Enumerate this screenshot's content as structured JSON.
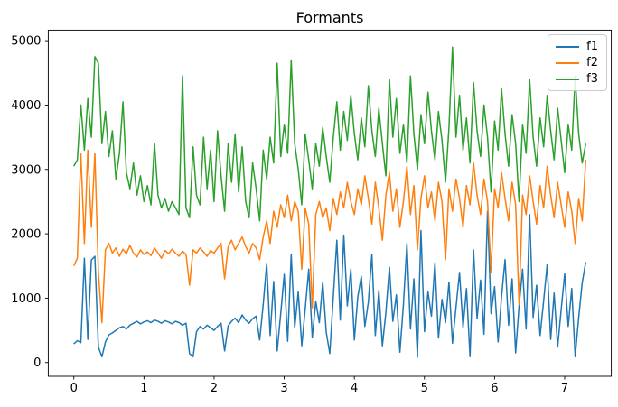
{
  "title": "Formants",
  "axes": {
    "xticks": [
      0,
      1,
      2,
      3,
      4,
      5,
      6,
      7
    ],
    "yticks": [
      0,
      1000,
      2000,
      3000,
      4000,
      5000
    ],
    "spine_color": "#000000",
    "tick_label_color": "#000000"
  },
  "legend": {
    "items": [
      {
        "label": "f1",
        "color": "#1f77b4"
      },
      {
        "label": "f2",
        "color": "#ff7f0e"
      },
      {
        "label": "f3",
        "color": "#2ca02c"
      }
    ]
  },
  "chart_data": {
    "type": "line",
    "title": "Formants",
    "xlabel": "",
    "ylabel": "",
    "grid": false,
    "legend_position": "upper right",
    "x_start": 0,
    "x_step": 0.05,
    "x_end": 7.3,
    "xlim": [
      -0.365,
      7.665
    ],
    "ylim": [
      -214,
      5164
    ],
    "xticks": [
      0,
      1,
      2,
      3,
      4,
      5,
      6,
      7
    ],
    "yticks": [
      0,
      1000,
      2000,
      3000,
      4000,
      5000
    ],
    "series": [
      {
        "name": "f1",
        "color": "#1f77b4",
        "values": [
          290,
          340,
          310,
          1620,
          360,
          1590,
          1650,
          240,
          90,
          320,
          430,
          460,
          500,
          540,
          560,
          520,
          580,
          610,
          640,
          600,
          630,
          650,
          620,
          660,
          640,
          610,
          650,
          630,
          600,
          640,
          620,
          580,
          610,
          140,
          90,
          480,
          560,
          520,
          580,
          540,
          500,
          560,
          610,
          180,
          570,
          640,
          690,
          620,
          740,
          660,
          610,
          680,
          720,
          350,
          900,
          1540,
          420,
          1260,
          180,
          760,
          1370,
          330,
          1680,
          540,
          1100,
          260,
          830,
          1450,
          390,
          950,
          620,
          1250,
          470,
          140,
          1020,
          1900,
          660,
          1980,
          880,
          1450,
          350,
          1020,
          1340,
          560,
          940,
          1680,
          420,
          1120,
          260,
          780,
          1480,
          640,
          1050,
          160,
          900,
          1850,
          520,
          1300,
          80,
          2050,
          480,
          1100,
          720,
          1550,
          380,
          980,
          620,
          1250,
          300,
          860,
          1400,
          540,
          1150,
          90,
          1750,
          680,
          1280,
          440,
          2350,
          760,
          1180,
          320,
          1020,
          1600,
          580,
          1300,
          150,
          880,
          1450,
          520,
          2300,
          700,
          1200,
          420,
          960,
          1520,
          360,
          1080,
          240,
          820,
          1380,
          560,
          1150,
          90,
          700,
          1240,
          1560
        ]
      },
      {
        "name": "f2",
        "color": "#ff7f0e",
        "values": [
          1500,
          1620,
          3250,
          1850,
          3300,
          2100,
          3250,
          1400,
          620,
          1750,
          1850,
          1700,
          1780,
          1650,
          1760,
          1690,
          1820,
          1700,
          1640,
          1750,
          1680,
          1720,
          1660,
          1780,
          1700,
          1620,
          1740,
          1690,
          1760,
          1700,
          1650,
          1730,
          1680,
          1200,
          1750,
          1700,
          1780,
          1720,
          1650,
          1740,
          1700,
          1780,
          1850,
          1300,
          1800,
          1900,
          1750,
          1850,
          1950,
          1800,
          1700,
          1850,
          1780,
          1600,
          1950,
          2200,
          1850,
          2350,
          2100,
          2450,
          2250,
          2600,
          2200,
          2500,
          2350,
          1450,
          2400,
          2150,
          850,
          2300,
          2500,
          2250,
          2400,
          2050,
          2550,
          2300,
          2650,
          2400,
          2800,
          2500,
          2300,
          2700,
          2450,
          2900,
          2550,
          2150,
          2800,
          2400,
          1900,
          2600,
          2950,
          2350,
          2700,
          2100,
          2500,
          3050,
          2300,
          2750,
          1750,
          2550,
          2900,
          2400,
          2650,
          2200,
          2800,
          2500,
          1600,
          2700,
          2350,
          2850,
          2550,
          2100,
          2750,
          2450,
          3100,
          2600,
          2300,
          2850,
          2500,
          1400,
          2700,
          2400,
          2950,
          2550,
          2200,
          2800,
          2450,
          900,
          2600,
          2300,
          2900,
          2500,
          2150,
          2750,
          2400,
          3050,
          2600,
          2250,
          2800,
          2450,
          2100,
          2650,
          2350,
          1850,
          2550,
          2200,
          3150
        ]
      },
      {
        "name": "f3",
        "color": "#2ca02c",
        "values": [
          3050,
          3150,
          4000,
          3300,
          4100,
          3500,
          4750,
          4650,
          3400,
          3900,
          3200,
          3600,
          2850,
          3250,
          4050,
          2950,
          2700,
          3100,
          2600,
          2900,
          2500,
          2750,
          2450,
          3400,
          2600,
          2400,
          2550,
          2350,
          2500,
          2400,
          2300,
          4450,
          2400,
          2250,
          3350,
          2600,
          2450,
          3500,
          2700,
          3300,
          2500,
          3600,
          2900,
          2350,
          3400,
          2800,
          3550,
          2650,
          3350,
          2500,
          2250,
          3100,
          2700,
          2200,
          3300,
          2850,
          3500,
          3100,
          4650,
          3200,
          3700,
          3250,
          4700,
          3400,
          3000,
          2450,
          3550,
          3150,
          2700,
          3400,
          3050,
          3650,
          3200,
          2800,
          3500,
          4050,
          3300,
          3900,
          3450,
          4150,
          3550,
          3150,
          3800,
          3350,
          4300,
          3600,
          3200,
          3950,
          3400,
          2900,
          4400,
          3500,
          4100,
          3250,
          3700,
          3100,
          4450,
          3550,
          3000,
          3850,
          3400,
          4200,
          3600,
          3150,
          3900,
          3450,
          2800,
          3650,
          4900,
          3500,
          4150,
          3300,
          3800,
          3100,
          4350,
          3600,
          3200,
          4000,
          3500,
          2650,
          3750,
          3300,
          4250,
          3550,
          3050,
          3850,
          3400,
          2500,
          3700,
          3250,
          4400,
          3500,
          3050,
          3800,
          3350,
          4150,
          3600,
          3150,
          3950,
          3450,
          2950,
          3700,
          3300,
          4450,
          3550,
          3100,
          3400
        ]
      }
    ]
  }
}
